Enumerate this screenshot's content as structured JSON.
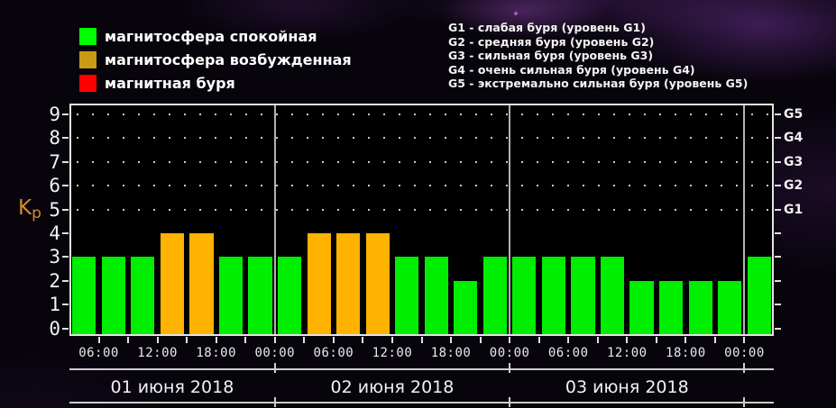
{
  "palette": {
    "quiet_bar": "#00ee00",
    "active_bar": "#ffb300",
    "storm_bar": "#ff0000",
    "legend_quiet": "#00ff00",
    "legend_active": "#c99b15",
    "legend_storm": "#ff0000",
    "axis_line": "#e4e4e4",
    "kp_title": "#d98a2b",
    "plot_background": "#000000"
  },
  "legend": {
    "items": [
      {
        "key": "quiet",
        "label": "магнитосфера спокойная",
        "color": "#00ff00"
      },
      {
        "key": "active",
        "label": "магнитосфера возбужденная",
        "color": "#c99b15"
      },
      {
        "key": "storm",
        "label": "магнитная буря",
        "color": "#ff0000"
      }
    ]
  },
  "storm_scale_legend": {
    "items": [
      "G1 - слабая буря (уровень G1)",
      "G2 - средняя буря (уровень G2)",
      "G3 - сильная буря (уровень G3)",
      "G4 - очень сильная буря (уровень G4)",
      "G5 - экстремально сильная буря (уровень G5)"
    ]
  },
  "chart_data": {
    "type": "bar",
    "ylabel": "Kp",
    "ylim": [
      0,
      9
    ],
    "yticks": [
      0,
      1,
      2,
      3,
      4,
      5,
      6,
      7,
      8,
      9
    ],
    "right_axis": [
      {
        "kp": 9,
        "label": "G5"
      },
      {
        "kp": 8,
        "label": "G4"
      },
      {
        "kp": 7,
        "label": "G3"
      },
      {
        "kp": 6,
        "label": "G2"
      },
      {
        "kp": 5,
        "label": "G1"
      }
    ],
    "grid_dotted_levels": [
      5,
      6,
      7,
      8,
      9
    ],
    "hours_per_bar": 3,
    "total_hours": 72,
    "time_labels": [
      "06:00",
      "12:00",
      "18:00",
      "00:00",
      "06:00",
      "12:00",
      "18:00",
      "00:00",
      "06:00",
      "12:00",
      "18:00",
      "00:00"
    ],
    "days": [
      {
        "label": "01 июня 2018",
        "start_cum_hour": 0,
        "bars": [
          {
            "kp": 3,
            "state": "quiet"
          },
          {
            "kp": 3,
            "state": "quiet"
          },
          {
            "kp": 3,
            "state": "quiet"
          },
          {
            "kp": 4,
            "state": "active"
          },
          {
            "kp": 4,
            "state": "active"
          },
          {
            "kp": 3,
            "state": "quiet"
          },
          {
            "kp": 3,
            "state": "quiet"
          }
        ]
      },
      {
        "label": "02 июня 2018",
        "start_cum_hour": 21,
        "bars": [
          {
            "kp": 3,
            "state": "quiet"
          },
          {
            "kp": 4,
            "state": "active"
          },
          {
            "kp": 4,
            "state": "active"
          },
          {
            "kp": 4,
            "state": "active"
          },
          {
            "kp": 3,
            "state": "quiet"
          },
          {
            "kp": 3,
            "state": "quiet"
          },
          {
            "kp": 2,
            "state": "quiet"
          },
          {
            "kp": 3,
            "state": "quiet"
          }
        ]
      },
      {
        "label": "03 июня 2018",
        "start_cum_hour": 45,
        "bars": [
          {
            "kp": 3,
            "state": "quiet"
          },
          {
            "kp": 3,
            "state": "quiet"
          },
          {
            "kp": 3,
            "state": "quiet"
          },
          {
            "kp": 3,
            "state": "quiet"
          },
          {
            "kp": 2,
            "state": "quiet"
          },
          {
            "kp": 2,
            "state": "quiet"
          },
          {
            "kp": 2,
            "state": "quiet"
          },
          {
            "kp": 2,
            "state": "quiet"
          }
        ]
      },
      {
        "label": "",
        "start_cum_hour": 69,
        "bars": [
          {
            "kp": 3,
            "state": "quiet"
          }
        ]
      }
    ],
    "day_separator_hours": [
      21,
      45,
      69
    ]
  }
}
